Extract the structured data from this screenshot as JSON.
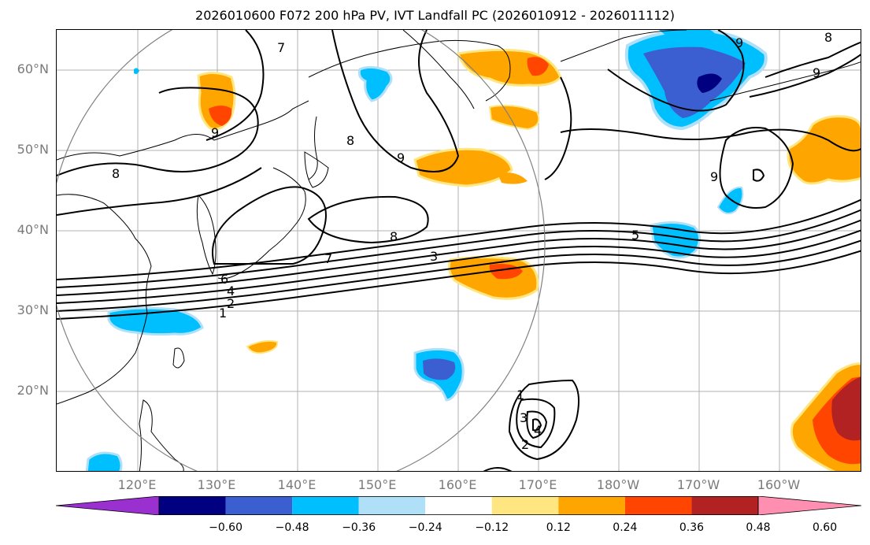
{
  "title": "2026010600 F072 200 hPa PV, IVT Landfall PC (2026010912 - 2026011112)",
  "latitude_ticks": [
    "60°N",
    "50°N",
    "40°N",
    "30°N",
    "20°N"
  ],
  "longitude_ticks": [
    "120°E",
    "130°E",
    "140°E",
    "150°E",
    "160°E",
    "170°E",
    "180°W",
    "170°W",
    "160°W"
  ],
  "contour_labels": [
    "7",
    "9",
    "9",
    "8",
    "9",
    "9",
    "8",
    "8",
    "8",
    "9",
    "5",
    "7",
    "3",
    "6",
    "4",
    "2",
    "1",
    "1",
    "3",
    "4",
    "2"
  ],
  "colorbar": {
    "tick_labels": [
      "−0.60",
      "−0.48",
      "−0.36",
      "−0.24",
      "−0.12",
      "0.12",
      "0.24",
      "0.36",
      "0.48",
      "0.60"
    ],
    "colors": [
      "#9b30d0",
      "#000080",
      "#3b5fd0",
      "#00bfff",
      "#b0e0f8",
      "#ffffff",
      "#ffe680",
      "#ffa500",
      "#ff4500",
      "#b22222",
      "#ff8fb0"
    ]
  }
}
